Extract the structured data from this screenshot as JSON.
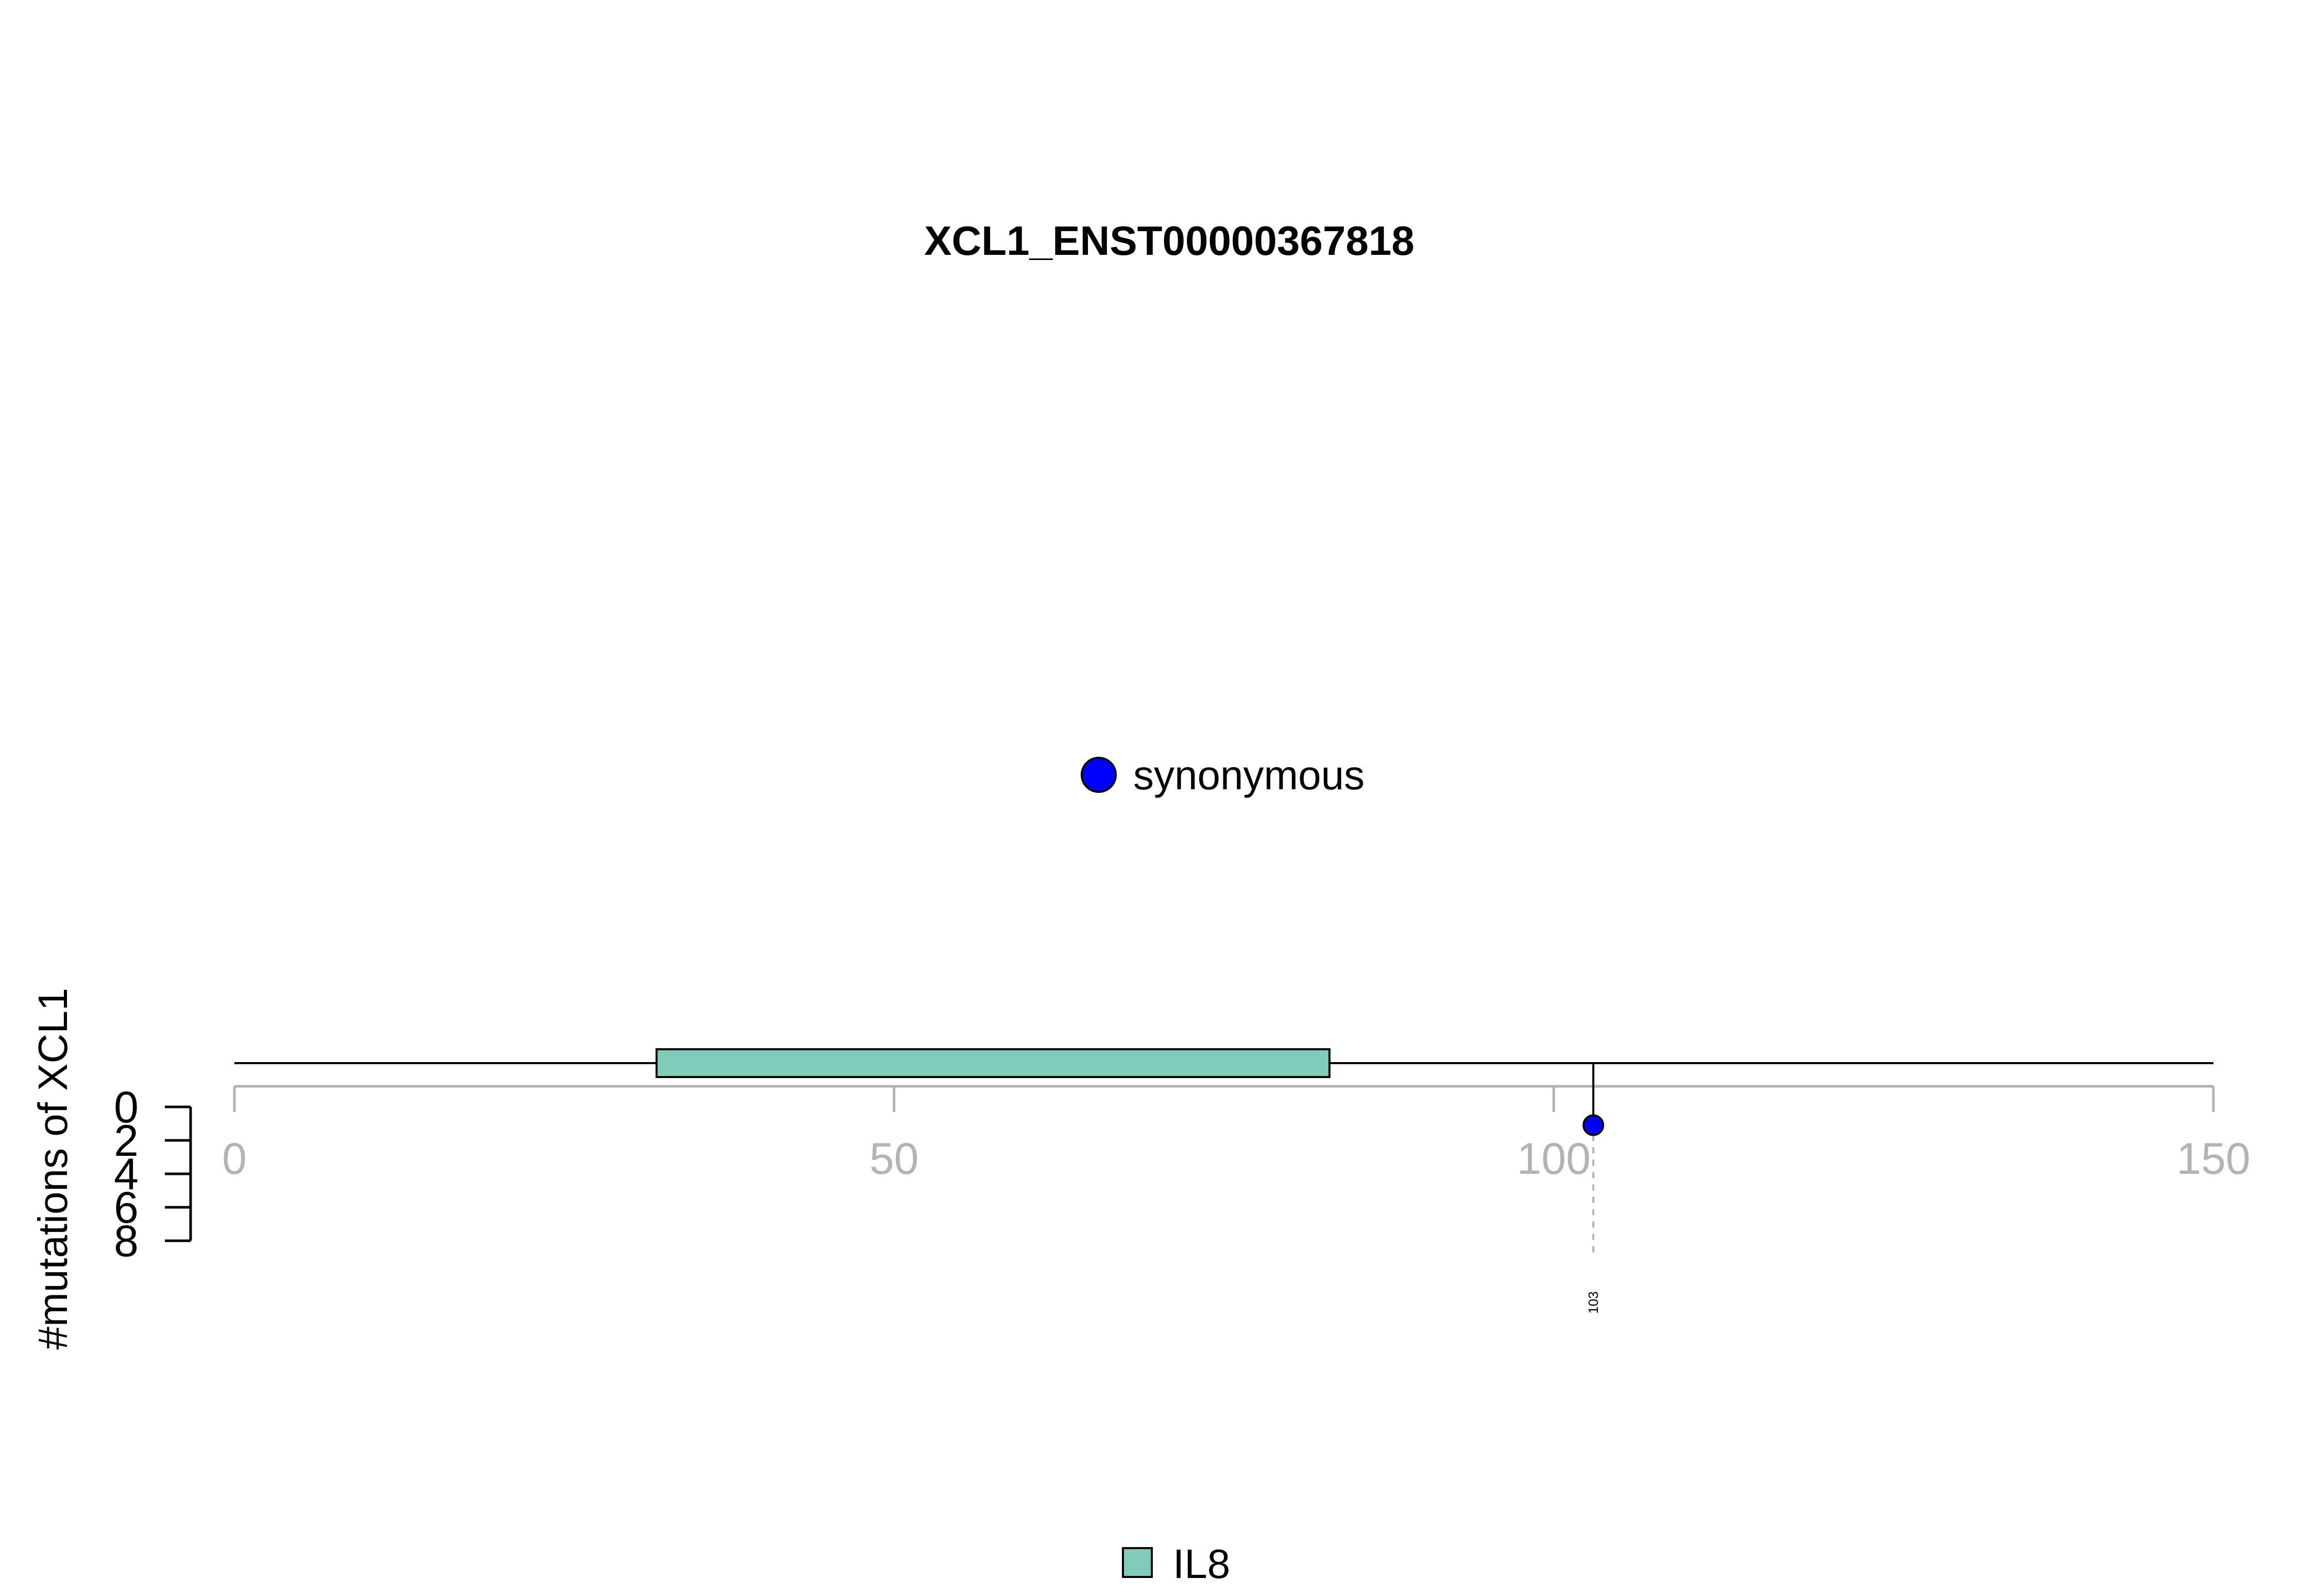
{
  "chart_data": {
    "type": "lollipop",
    "title": "XCL1_ENST00000367818",
    "xlabel": "",
    "ylabel": "#mutations of XCL1",
    "xlim": [
      0,
      150
    ],
    "x_ticks": [
      0,
      50,
      100,
      150
    ],
    "ylim": [
      0,
      8
    ],
    "y_ticks": [
      0,
      2,
      4,
      6,
      8
    ],
    "protein_length": 150,
    "domains": [
      {
        "name": "IL8",
        "start": 32,
        "end": 83,
        "color": "#7fccba"
      }
    ],
    "mutations": [
      {
        "position": 103,
        "count": 1,
        "type": "synonymous",
        "color": "#0000ff",
        "label": "103"
      }
    ],
    "mutation_legend": [
      {
        "label": "synonymous",
        "color": "#0000ff"
      }
    ],
    "domain_legend": [
      {
        "label": "IL8",
        "color": "#7fccba"
      }
    ]
  }
}
